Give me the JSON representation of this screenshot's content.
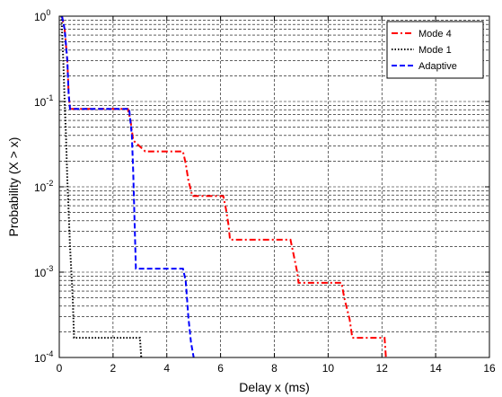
{
  "chart_data": {
    "type": "line",
    "title": "",
    "xlabel": "Delay x (ms)",
    "ylabel": "Probability (X > x)",
    "xlim": [
      0,
      16
    ],
    "ylim": [
      0.0001,
      1
    ],
    "yscale": "log",
    "grid": true,
    "legend_position": "top-right",
    "x_ticks": [
      "0",
      "2",
      "4",
      "6",
      "8",
      "10",
      "12",
      "14",
      "16"
    ],
    "y_ticks": [
      {
        "base": "10",
        "exp": "-4"
      },
      {
        "base": "10",
        "exp": "-3"
      },
      {
        "base": "10",
        "exp": "-2"
      },
      {
        "base": "10",
        "exp": "-1"
      },
      {
        "base": "10",
        "exp": "0"
      }
    ],
    "series": [
      {
        "name": "Mode 4",
        "color": "#ff0000",
        "style": "dash-dot",
        "x": [
          0.1,
          0.2,
          0.3,
          0.35,
          0.4,
          2.55,
          2.65,
          2.75,
          3.2,
          4.6,
          4.7,
          4.8,
          4.95,
          6.1,
          6.2,
          6.3,
          6.35,
          8.6,
          8.7,
          8.85,
          8.9,
          10.5,
          10.6,
          10.8,
          10.9,
          12.1,
          12.15
        ],
        "y": [
          1.0,
          0.7,
          0.3,
          0.12,
          0.082,
          0.082,
          0.06,
          0.035,
          0.026,
          0.026,
          0.019,
          0.012,
          0.0078,
          0.0078,
          0.0055,
          0.0035,
          0.0024,
          0.0024,
          0.0017,
          0.001,
          0.00075,
          0.00075,
          0.0005,
          0.00028,
          0.00017,
          0.00017,
          0.0001
        ]
      },
      {
        "name": "Mode 1",
        "color": "#000000",
        "style": "dotted",
        "x": [
          0.08,
          0.15,
          0.2,
          0.25,
          0.3,
          0.35,
          0.4,
          0.45,
          0.5,
          0.55,
          3.0,
          3.05
        ],
        "y": [
          1.0,
          0.3,
          0.1,
          0.04,
          0.012,
          0.005,
          0.002,
          0.001,
          0.0005,
          0.00017,
          0.00017,
          0.0001
        ]
      },
      {
        "name": "Adaptive",
        "color": "#0000ff",
        "style": "dashed",
        "x": [
          0.1,
          0.2,
          0.3,
          0.35,
          0.4,
          2.6,
          2.7,
          2.75,
          2.8,
          2.85,
          4.6,
          4.7,
          4.75,
          4.8,
          4.9,
          5.0
        ],
        "y": [
          1.0,
          0.7,
          0.3,
          0.12,
          0.082,
          0.082,
          0.04,
          0.015,
          0.004,
          0.0011,
          0.0011,
          0.0008,
          0.0005,
          0.0003,
          0.00015,
          0.0001
        ]
      }
    ]
  }
}
